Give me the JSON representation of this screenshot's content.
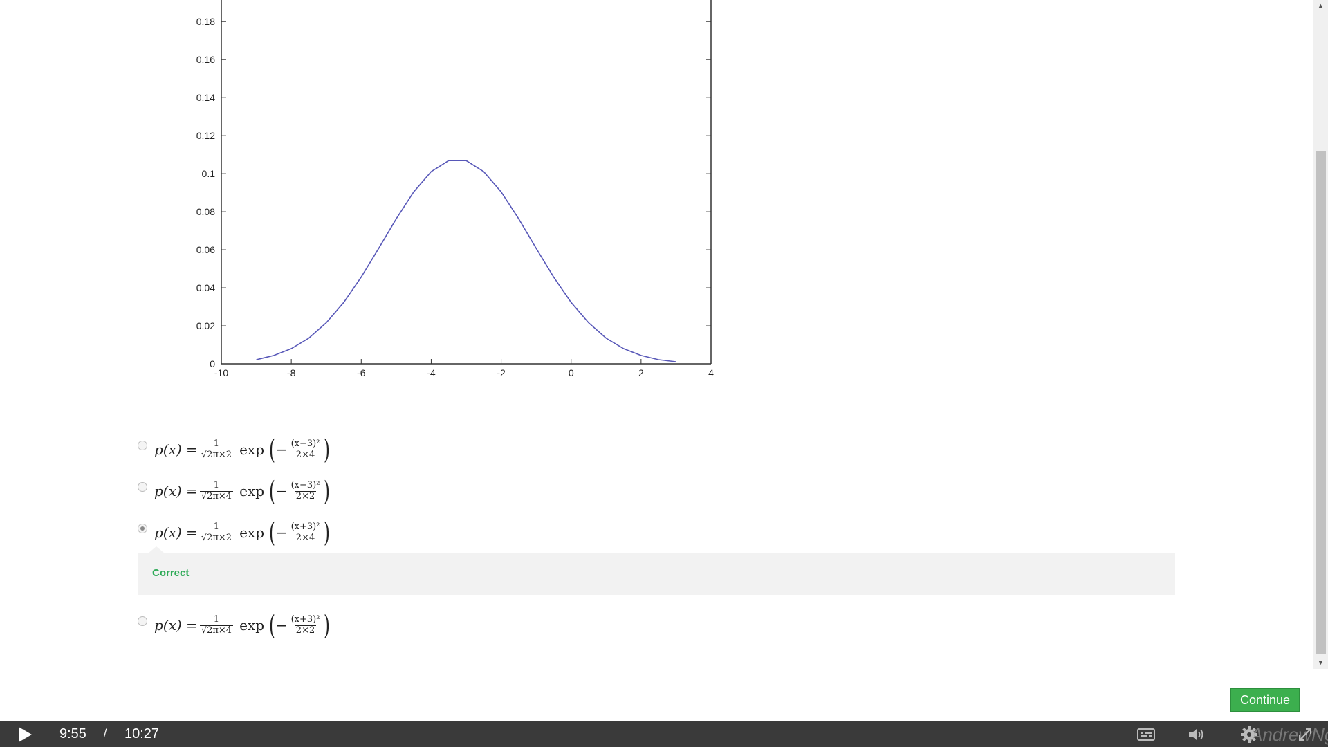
{
  "chart_data": {
    "type": "line",
    "title": "",
    "xlabel": "",
    "ylabel": "",
    "xlim": [
      -10,
      4
    ],
    "ylim": [
      0,
      0.195
    ],
    "x_ticks": [
      -10,
      -8,
      -6,
      -4,
      -2,
      0,
      2,
      4
    ],
    "y_ticks": [
      0,
      0.02,
      0.04,
      0.06,
      0.08,
      0.1,
      0.12,
      0.14,
      0.16,
      0.18
    ],
    "x_tick_labels": [
      "-10",
      "-8",
      "-6",
      "-4",
      "-2",
      "0",
      "2",
      "4"
    ],
    "y_tick_labels": [
      "0",
      "0.02",
      "0.04",
      "0.06",
      "0.08",
      "0.1",
      "0.12",
      "0.14",
      "0.16",
      "0.18"
    ],
    "series": [
      {
        "color": "#5757b8",
        "x": [
          -9,
          -8.5,
          -8,
          -7.5,
          -7,
          -6.5,
          -6,
          -5.5,
          -5,
          -4.5,
          -4,
          -3.5,
          -3,
          -2.5,
          -2,
          -1.5,
          -1,
          -0.5,
          0,
          0.5,
          1,
          1.5,
          2,
          2.5,
          3
        ],
        "y": [
          0.0022,
          0.0044,
          0.008,
          0.0135,
          0.0216,
          0.0323,
          0.0457,
          0.0608,
          0.0763,
          0.0904,
          0.1011,
          0.1069,
          0.1069,
          0.1011,
          0.0904,
          0.0763,
          0.0608,
          0.0457,
          0.0323,
          0.0216,
          0.0135,
          0.008,
          0.0044,
          0.0022,
          0.0011
        ]
      }
    ]
  },
  "options": [
    {
      "lhs": "p(x) =",
      "coef_num": "1",
      "coef_den": "√2π×2",
      "fn": "exp",
      "exp_num": "(x−3)²",
      "exp_den": "2×4",
      "selected": false
    },
    {
      "lhs": "p(x) =",
      "coef_num": "1",
      "coef_den": "√2π×4",
      "fn": "exp",
      "exp_num": "(x−3)²",
      "exp_den": "2×2",
      "selected": false
    },
    {
      "lhs": "p(x) =",
      "coef_num": "1",
      "coef_den": "√2π×2",
      "fn": "exp",
      "exp_num": "(x+3)²",
      "exp_den": "2×4",
      "selected": true
    },
    {
      "lhs": "p(x) =",
      "coef_num": "1",
      "coef_den": "√2π×4",
      "fn": "exp",
      "exp_num": "(x+3)²",
      "exp_den": "2×2",
      "selected": false
    }
  ],
  "feedback": {
    "label": "Correct",
    "color": "#2eaa57"
  },
  "continue_button": {
    "label": "Continue"
  },
  "player": {
    "current_time": "9:55",
    "separator": "/",
    "duration": "10:27",
    "watermark": "AndrewNg",
    "icons": [
      "play-icon",
      "closed-captions-icon",
      "volume-icon",
      "gear-icon",
      "fullscreen-icon"
    ]
  }
}
